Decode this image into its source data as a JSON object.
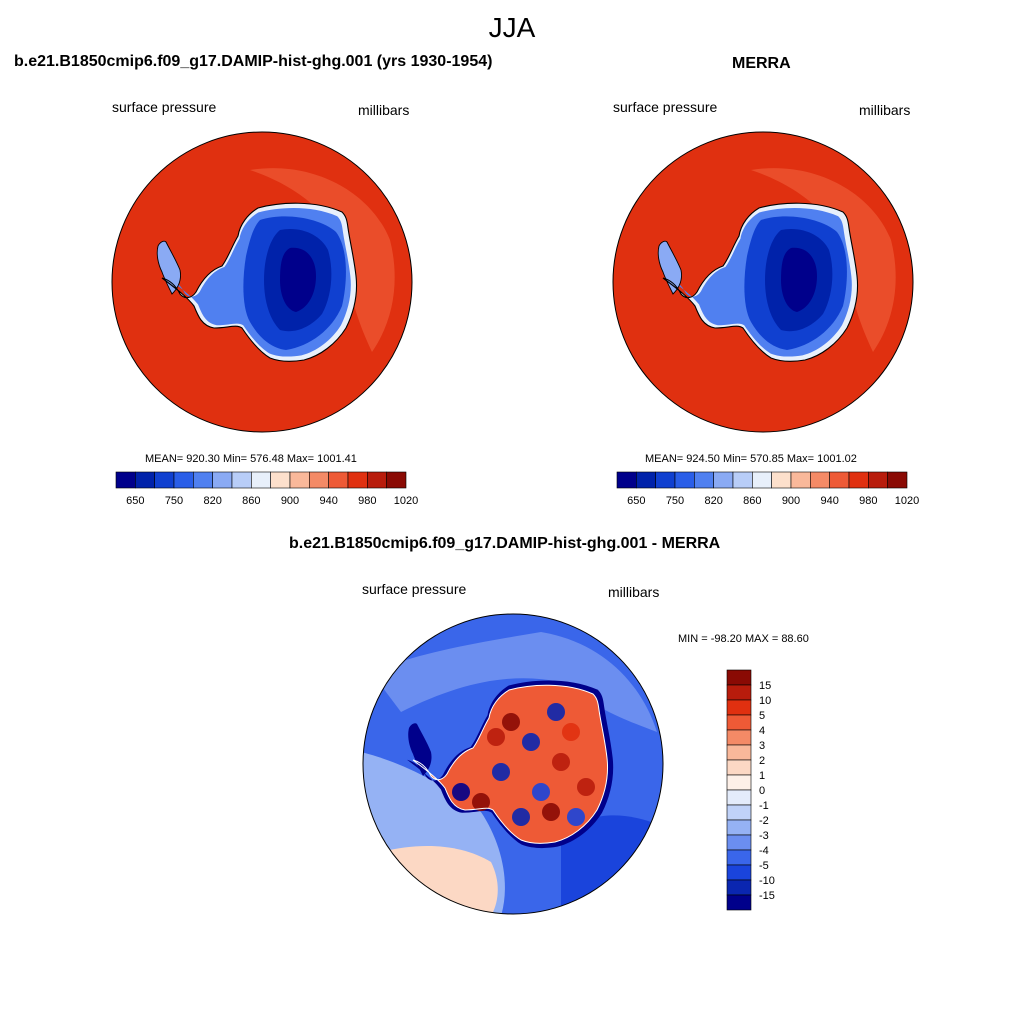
{
  "page": {
    "title": "JJA"
  },
  "colors": {
    "continent_outline": "#000000",
    "ocean_dominant": "#e03010",
    "interior_dominant": "#0010a0",
    "diff_ocean": "#1040e0",
    "diff_positive_patch": "#fcd8c4"
  },
  "chart_data": [
    {
      "type": "heatmap",
      "projection": "south-polar-stereographic",
      "title": "b.e21.B1850cmip6.f09_g17.DAMIP-hist-ghg.001 (yrs 1930-1954)",
      "variable_label": "surface pressure",
      "units_label": "millibars",
      "stats": {
        "mean": "920.30",
        "min": "576.48",
        "max": "1001.41"
      },
      "stats_text": "MEAN= 920.30  Min= 576.48  Max= 1001.41",
      "colorbar": {
        "orientation": "horizontal",
        "tick_labels": [
          "650",
          "750",
          "820",
          "860",
          "900",
          "940",
          "980",
          "1020"
        ],
        "colors": [
          "#00008b",
          "#0022aa",
          "#1040d0",
          "#2a5ee8",
          "#5080f0",
          "#8aaaf4",
          "#b8cdf8",
          "#e8f0fb",
          "#fde0cc",
          "#f9b89a",
          "#f48a66",
          "#ee5a36",
          "#e03010",
          "#b81c0c",
          "#8a0a04"
        ]
      }
    },
    {
      "type": "heatmap",
      "projection": "south-polar-stereographic",
      "title": "MERRA",
      "variable_label": "surface pressure",
      "units_label": "millibars",
      "stats": {
        "mean": "924.50",
        "min": "570.85",
        "max": "1001.02"
      },
      "stats_text": "MEAN= 924.50  Min= 570.85  Max= 1001.02",
      "colorbar": {
        "orientation": "horizontal",
        "tick_labels": [
          "650",
          "750",
          "820",
          "860",
          "900",
          "940",
          "980",
          "1020"
        ],
        "colors": [
          "#00008b",
          "#0022aa",
          "#1040d0",
          "#2a5ee8",
          "#5080f0",
          "#8aaaf4",
          "#b8cdf8",
          "#e8f0fb",
          "#fde0cc",
          "#f9b89a",
          "#f48a66",
          "#ee5a36",
          "#e03010",
          "#b81c0c",
          "#8a0a04"
        ]
      }
    },
    {
      "type": "heatmap",
      "projection": "south-polar-stereographic",
      "title": "b.e21.B1850cmip6.f09_g17.DAMIP-hist-ghg.001 - MERRA",
      "variable_label": "surface pressure",
      "units_label": "millibars",
      "stats": {
        "min": "-98.20",
        "max": "88.60"
      },
      "stats_text": "MIN = -98.20 MAX =  88.60",
      "colorbar": {
        "orientation": "vertical",
        "tick_labels": [
          "15",
          "10",
          "5",
          "4",
          "3",
          "2",
          "1",
          "0",
          "-1",
          "-2",
          "-3",
          "-4",
          "-5",
          "-10",
          "-15"
        ],
        "colors": [
          "#8a0a04",
          "#b81c0c",
          "#e03010",
          "#ee5a36",
          "#f48a66",
          "#f9b89a",
          "#fcd8c4",
          "#fdf0e8",
          "#e4ecfb",
          "#c0d2f8",
          "#95b2f4",
          "#6b8ef0",
          "#3a66ea",
          "#1a44dc",
          "#0a26b0",
          "#00008b"
        ]
      }
    }
  ]
}
